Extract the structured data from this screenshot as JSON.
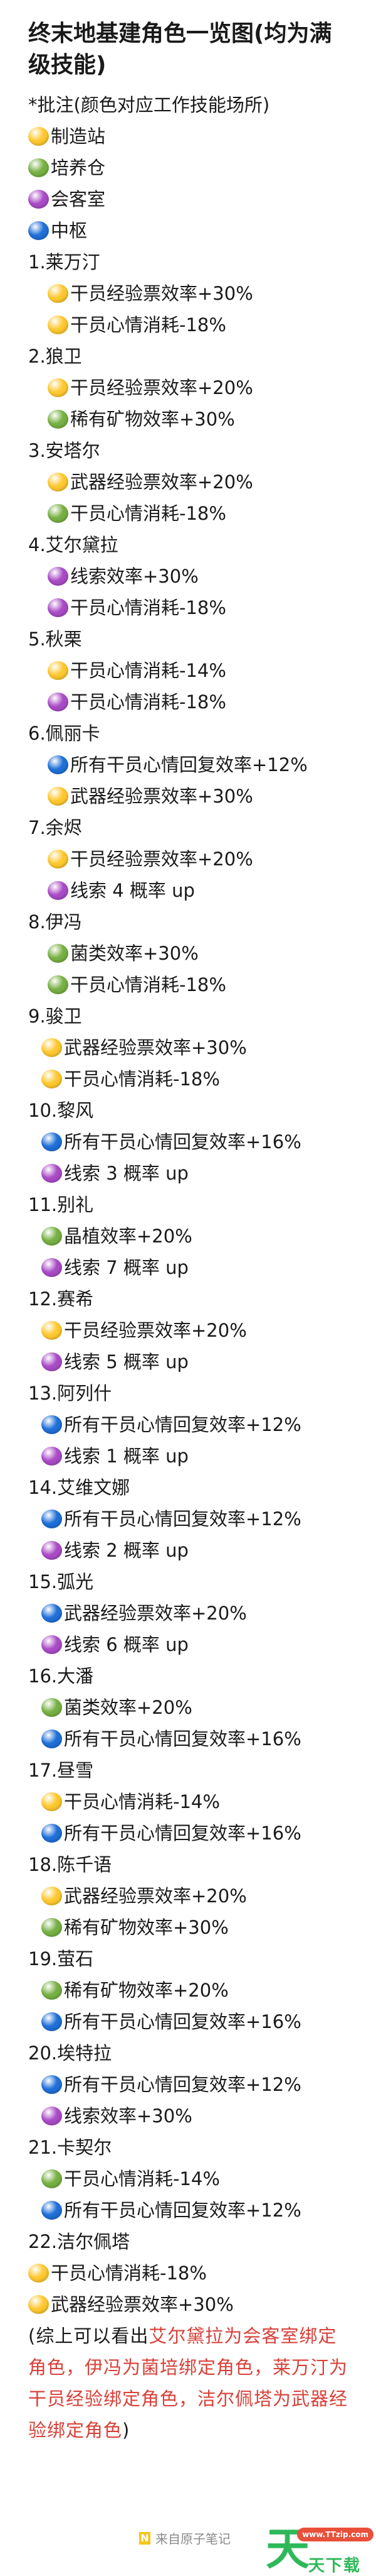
{
  "colors": {
    "yellow": "#fdc72e",
    "green": "#76b043",
    "purple": "#a94bc6",
    "blue": "#1f6fd8",
    "highlight": "#d8413a"
  },
  "title": "终末地基建角色一览图(均为满级技能)",
  "note": "*批注(颜色对应工作技能场所)",
  "legend": [
    {
      "color": "yellow",
      "label": "制造站"
    },
    {
      "color": "green",
      "label": "培养仓"
    },
    {
      "color": "purple",
      "label": "会客室"
    },
    {
      "color": "blue",
      "label": "中枢"
    }
  ],
  "characters": [
    {
      "name": "1.莱万汀",
      "skills": [
        {
          "color": "yellow",
          "text": "干员经验票效率+30%"
        },
        {
          "color": "yellow",
          "text": "干员心情消耗-18%"
        }
      ]
    },
    {
      "name": "2.狼卫",
      "skills": [
        {
          "color": "yellow",
          "text": "干员经验票效率+20%"
        },
        {
          "color": "green",
          "text": "稀有矿物效率+30%"
        }
      ]
    },
    {
      "name": "3.安塔尔",
      "skills": [
        {
          "color": "yellow",
          "text": "武器经验票效率+20%"
        },
        {
          "color": "green",
          "text": "干员心情消耗-18%"
        }
      ]
    },
    {
      "name": "4.艾尔黛拉",
      "skills": [
        {
          "color": "purple",
          "text": "线索效率+30%"
        },
        {
          "color": "purple",
          "text": "干员心情消耗-18%"
        }
      ]
    },
    {
      "name": "5.秋栗",
      "skills": [
        {
          "color": "yellow",
          "text": "干员心情消耗-14%"
        },
        {
          "color": "purple",
          "text": "干员心情消耗-18%"
        }
      ]
    },
    {
      "name": "6.佩丽卡",
      "skills": [
        {
          "color": "blue",
          "text": "所有干员心情回复效率+12%"
        },
        {
          "color": "yellow",
          "text": "武器经验票效率+30%"
        }
      ]
    },
    {
      "name": "7.余烬",
      "skills": [
        {
          "color": "yellow",
          "text": "干员经验票效率+20%"
        },
        {
          "color": "purple",
          "text": "线索 4 概率 up"
        }
      ]
    },
    {
      "name": "8.伊冯",
      "skills": [
        {
          "color": "green",
          "text": "菌类效率+30%"
        },
        {
          "color": "green",
          "text": "干员心情消耗-18%"
        }
      ]
    },
    {
      "name": "9.骏卫",
      "skills": [
        {
          "color": "yellow",
          "text": "武器经验票效率+30%"
        },
        {
          "color": "yellow",
          "text": "干员心情消耗-18%"
        }
      ]
    },
    {
      "name": "10.黎风",
      "skills": [
        {
          "color": "blue",
          "text": "所有干员心情回复效率+16%"
        },
        {
          "color": "purple",
          "text": "线索 3 概率 up"
        }
      ]
    },
    {
      "name": "11.别礼",
      "skills": [
        {
          "color": "green",
          "text": "晶植效率+20%"
        },
        {
          "color": "purple",
          "text": "线索 7 概率 up"
        }
      ]
    },
    {
      "name": "12.赛希",
      "skills": [
        {
          "color": "yellow",
          "text": "干员经验票效率+20%"
        },
        {
          "color": "purple",
          "text": "线索 5 概率 up"
        }
      ]
    },
    {
      "name": "13.阿列什",
      "skills": [
        {
          "color": "blue",
          "text": "所有干员心情回复效率+12%"
        },
        {
          "color": "purple",
          "text": "线索 1 概率 up"
        }
      ]
    },
    {
      "name": "14.艾维文娜",
      "skills": [
        {
          "color": "blue",
          "text": "所有干员心情回复效率+12%"
        },
        {
          "color": "purple",
          "text": "线索 2 概率 up"
        }
      ]
    },
    {
      "name": "15.弧光",
      "skills": [
        {
          "color": "blue",
          "text": "武器经验票效率+20%"
        },
        {
          "color": "purple",
          "text": "线索 6 概率 up"
        }
      ]
    },
    {
      "name": "16.大潘",
      "skills": [
        {
          "color": "green",
          "text": "菌类效率+20%"
        },
        {
          "color": "blue",
          "text": "所有干员心情回复效率+16%"
        }
      ]
    },
    {
      "name": "17.昼雪",
      "skills": [
        {
          "color": "yellow",
          "text": "干员心情消耗-14%"
        },
        {
          "color": "blue",
          "text": "所有干员心情回复效率+16%"
        }
      ]
    },
    {
      "name": "18.陈千语",
      "skills": [
        {
          "color": "yellow",
          "text": "武器经验票效率+20%"
        },
        {
          "color": "green",
          "text": "稀有矿物效率+30%"
        }
      ]
    },
    {
      "name": "19.萤石",
      "skills": [
        {
          "color": "green",
          "text": "稀有矿物效率+20%"
        },
        {
          "color": "blue",
          "text": "所有干员心情回复效率+16%"
        }
      ]
    },
    {
      "name": "20.埃特拉",
      "skills": [
        {
          "color": "blue",
          "text": "所有干员心情回复效率+12%"
        },
        {
          "color": "purple",
          "text": "线索效率+30%"
        }
      ]
    },
    {
      "name": "21.卡契尔",
      "skills": [
        {
          "color": "green",
          "text": "干员心情消耗-14%"
        },
        {
          "color": "blue",
          "text": "所有干员心情回复效率+12%"
        }
      ]
    },
    {
      "name": "22.洁尔佩塔",
      "skills": [
        {
          "color": "yellow",
          "text": "干员心情消耗-18%"
        },
        {
          "color": "yellow",
          "text": "武器经验票效率+30%"
        }
      ]
    }
  ],
  "summary": {
    "prefix": "(综上可以看出",
    "highlight": "艾尔黛拉为会客室绑定角色，伊冯为菌培绑定角色，莱万汀为干员经验绑定角色，洁尔佩塔为武器经验绑定角色",
    "suffix": ")"
  },
  "footer": {
    "logo": "N",
    "text": "来自原子笔记"
  },
  "watermark": {
    "logo_char": "天",
    "url": "www.TTzip.com",
    "text": "天下载"
  }
}
